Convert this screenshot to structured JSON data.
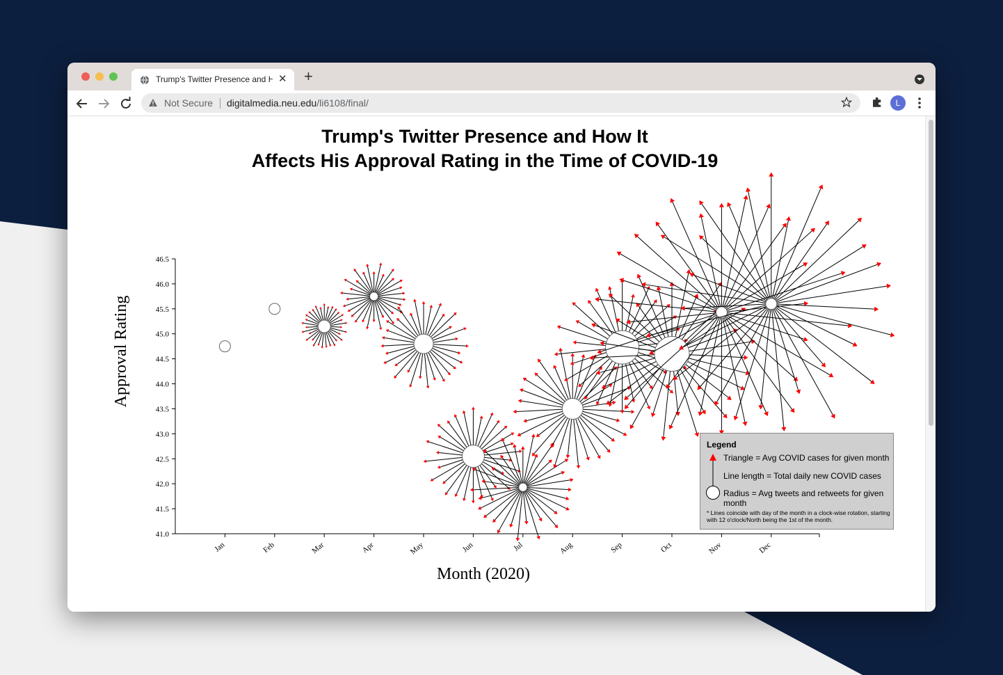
{
  "browser": {
    "tab_title": "Trump's Twitter Presence and How It Affects His Approval Rating",
    "security_label": "Not Secure",
    "url_host": "digitalmedia.neu.edu",
    "url_path": "/li6108/final/",
    "profile_initial": "L"
  },
  "page": {
    "title_line1": "Trump's Twitter Presence and How It",
    "title_line2": "Affects His Approval Rating in the Time of COVID-19"
  },
  "legend": {
    "title": "Legend",
    "triangle_text": "Triangle = Avg COVID cases for given month",
    "line_text": "Line length = Total daily new COVID cases",
    "radius_text": "Radius = Avg tweets and retweets for given month",
    "note": "* Lines coincide with day of the month in a clock-wise rotation, starting with 12 o'clock/North being the 1st of the month."
  },
  "chart_data": {
    "type": "scatter",
    "xlabel": "Month (2020)",
    "ylabel": "Approval Rating",
    "categories": [
      "Jan",
      "Feb",
      "Mar",
      "Apr",
      "May",
      "Jun",
      "Jul",
      "Aug",
      "Sep",
      "Oct",
      "Nov",
      "Dec"
    ],
    "ylim": [
      41.0,
      46.5
    ],
    "y_ticks": [
      "41.0",
      "41.5",
      "42.0",
      "42.5",
      "43.0",
      "43.5",
      "44.0",
      "44.5",
      "45.0",
      "45.5",
      "46.0",
      "46.5"
    ],
    "series": [
      {
        "values": [
          44.75,
          45.5,
          45.15,
          45.75,
          44.8,
          42.55,
          41.93,
          43.5,
          44.73,
          44.6,
          45.43,
          45.6
        ],
        "avg_tweets_radius": [
          8,
          8,
          9,
          6,
          14,
          16,
          6,
          15,
          24,
          25,
          8,
          8
        ],
        "covid_line_length": [
          0,
          0,
          22,
          40,
          48,
          52,
          68,
          70,
          70,
          95,
          175,
          175
        ],
        "days_in_month": [
          31,
          29,
          31,
          30,
          31,
          30,
          31,
          31,
          30,
          31,
          30,
          31
        ]
      }
    ],
    "colors": {
      "triangle": "#ff0000",
      "line": "#000000",
      "circle_fill": "#ffffff",
      "circle_stroke": "#666666"
    },
    "legend_position": "bottom-right",
    "grid": false
  }
}
